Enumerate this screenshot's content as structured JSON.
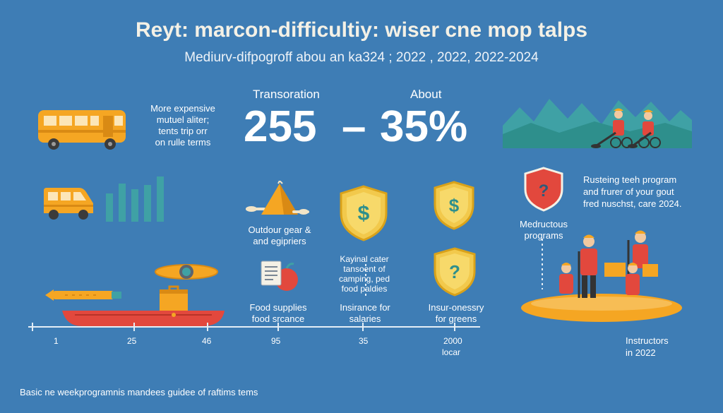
{
  "header": {
    "title": "Reyt: marcon-difficultiy: wiser cne mop talps",
    "subtitle": "Mediurv-difpogroff abou an ka324 ; 2022 , 2022, 2022-2024"
  },
  "stats": {
    "left_label": "Transoration",
    "left_value": "255",
    "dash": "–",
    "right_label": "About",
    "right_value": "35%"
  },
  "notes": {
    "bus_note": [
      "More expensive",
      "mutuel aliter;",
      "tents trip orr",
      "on rulle terms"
    ],
    "gear": [
      "Outdour gear &",
      "and egipriers"
    ],
    "kayinal": [
      "Kayinal cater",
      "tansoent of",
      "camping, ped",
      "food paldies"
    ],
    "food": [
      "Food supplies",
      "food srcance"
    ],
    "insurance": [
      "Insirance for",
      "salaries"
    ],
    "insur_greens": [
      "Insur-onessry",
      "for greens"
    ],
    "rusteing": [
      "Rusteing teeh program",
      "and frurer of your gout",
      "fred nuschst, care 2024."
    ],
    "medructous": [
      "Medructous",
      "programs"
    ],
    "instructors": [
      "Instructors",
      "in 2022"
    ],
    "footer": "Basic ne weekprogramnis mandees guidee of raftims tems"
  },
  "timeline": {
    "ticks": [
      "1",
      "25",
      "46",
      "95",
      "35",
      "2000",
      "locar"
    ]
  },
  "icons": {
    "shield_dollar": "$",
    "shield_question": "?",
    "accent_orange": "#F5A623",
    "accent_yellow": "#F2C94C",
    "accent_red": "#E2483D",
    "teal": "#3FA1A5"
  }
}
